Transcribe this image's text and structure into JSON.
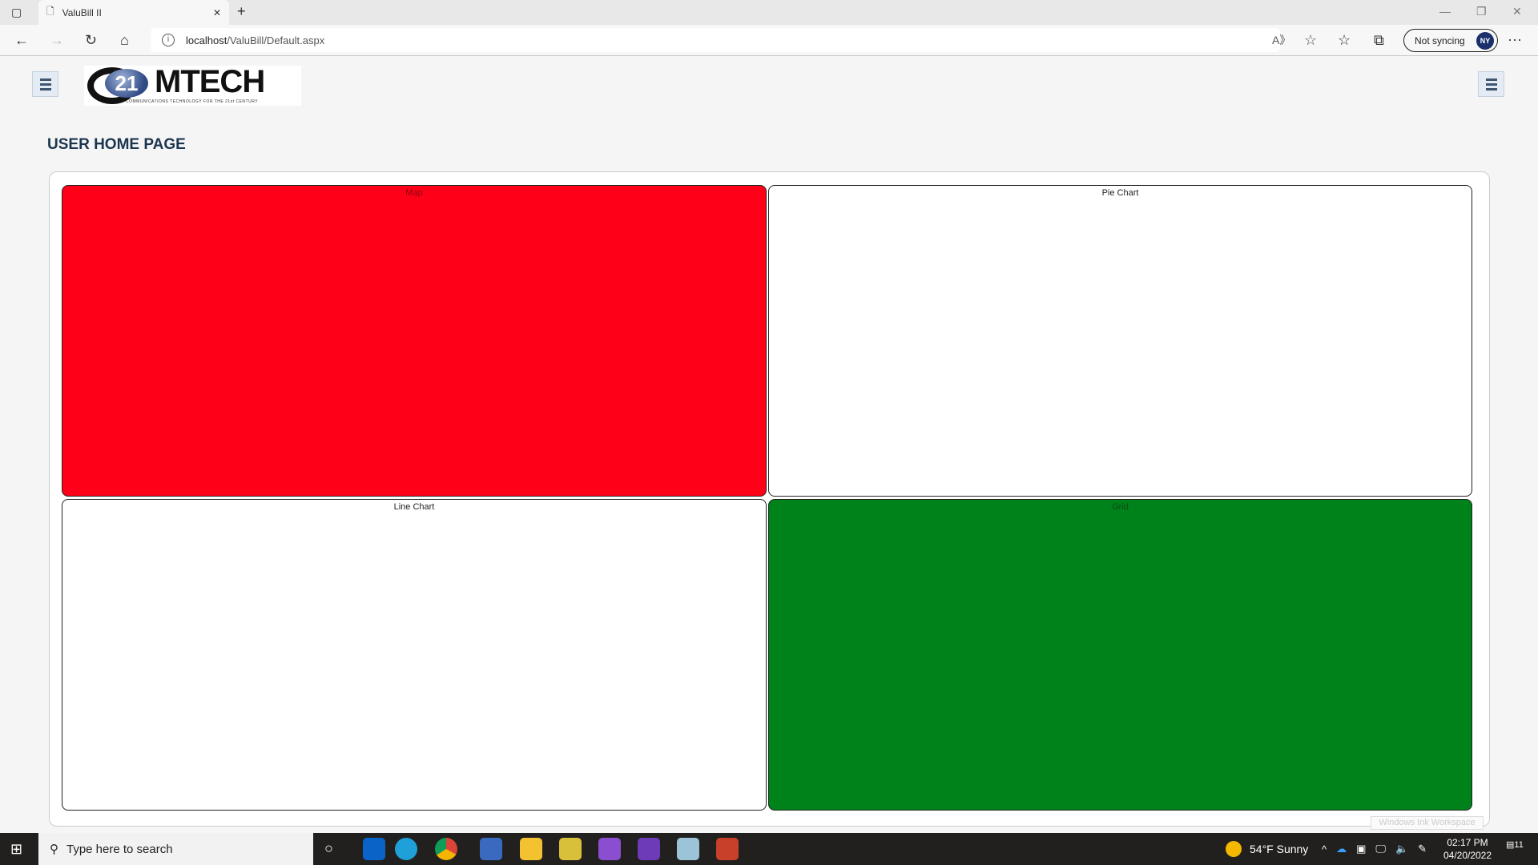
{
  "browser": {
    "tab_title": "ValuBill II",
    "url_host": "localhost",
    "url_path": "/ValuBill/Default.aspx",
    "sync_label": "Not syncing",
    "avatar": "NY"
  },
  "page": {
    "logo_text": "21MTECH",
    "logo_number": "21",
    "logo_tagline": "COMMUNICATIONS TECHNOLOGY FOR THE 21st CENTURY",
    "title": "USER HOME PAGE",
    "panels": [
      {
        "label": "Map",
        "color": "#ff0019"
      },
      {
        "label": "Pie Chart",
        "color": "#ffffff"
      },
      {
        "label": "Line Chart",
        "color": "#ffffff"
      },
      {
        "label": "Grid",
        "color": "#00821a"
      }
    ]
  },
  "taskbar": {
    "search_placeholder": "Type here to search",
    "weather": "54°F  Sunny",
    "time": "02:17 PM",
    "date": "04/20/2022",
    "notifications": "11",
    "tooltip": "Windows Ink Workspace"
  }
}
